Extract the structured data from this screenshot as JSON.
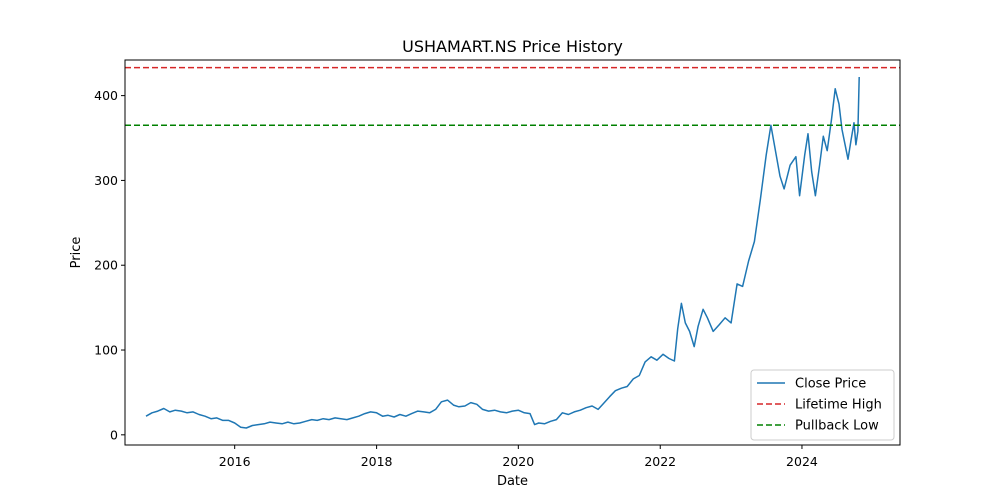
{
  "chart_data": {
    "type": "line",
    "title": "USHAMART.NS Price History",
    "xlabel": "Date",
    "ylabel": "Price",
    "x_ticks": [
      "2016",
      "2018",
      "2020",
      "2022",
      "2024"
    ],
    "y_ticks": [
      0,
      100,
      200,
      300,
      400
    ],
    "xlim": [
      "2014-06-15",
      "2025-05-20"
    ],
    "ylim": [
      -12,
      442
    ],
    "grid": false,
    "legend_position": "bottom-right",
    "series": [
      {
        "name": "Close Price",
        "color": "#1f77b4",
        "points": [
          [
            "2014-10-01",
            22
          ],
          [
            "2014-11-01",
            26
          ],
          [
            "2014-12-01",
            28
          ],
          [
            "2015-01-01",
            31
          ],
          [
            "2015-02-01",
            27
          ],
          [
            "2015-03-01",
            29
          ],
          [
            "2015-04-01",
            28
          ],
          [
            "2015-05-01",
            26
          ],
          [
            "2015-06-01",
            27
          ],
          [
            "2015-07-01",
            24
          ],
          [
            "2015-08-01",
            22
          ],
          [
            "2015-09-01",
            19
          ],
          [
            "2015-10-01",
            20
          ],
          [
            "2015-11-01",
            17
          ],
          [
            "2015-12-01",
            17
          ],
          [
            "2016-01-01",
            14
          ],
          [
            "2016-02-01",
            9
          ],
          [
            "2016-03-01",
            8
          ],
          [
            "2016-04-01",
            11
          ],
          [
            "2016-05-01",
            12
          ],
          [
            "2016-06-01",
            13
          ],
          [
            "2016-07-01",
            15
          ],
          [
            "2016-08-01",
            14
          ],
          [
            "2016-09-01",
            13
          ],
          [
            "2016-10-01",
            15
          ],
          [
            "2016-11-01",
            13
          ],
          [
            "2016-12-01",
            14
          ],
          [
            "2017-01-01",
            16
          ],
          [
            "2017-02-01",
            18
          ],
          [
            "2017-03-01",
            17
          ],
          [
            "2017-04-01",
            19
          ],
          [
            "2017-05-01",
            18
          ],
          [
            "2017-06-01",
            20
          ],
          [
            "2017-07-01",
            19
          ],
          [
            "2017-08-01",
            18
          ],
          [
            "2017-09-01",
            20
          ],
          [
            "2017-10-01",
            22
          ],
          [
            "2017-11-01",
            25
          ],
          [
            "2017-12-01",
            27
          ],
          [
            "2018-01-01",
            26
          ],
          [
            "2018-02-01",
            22
          ],
          [
            "2018-03-01",
            23
          ],
          [
            "2018-04-01",
            21
          ],
          [
            "2018-05-01",
            24
          ],
          [
            "2018-06-01",
            22
          ],
          [
            "2018-07-01",
            25
          ],
          [
            "2018-08-01",
            28
          ],
          [
            "2018-09-01",
            27
          ],
          [
            "2018-10-01",
            26
          ],
          [
            "2018-11-01",
            30
          ],
          [
            "2018-12-01",
            39
          ],
          [
            "2019-01-01",
            41
          ],
          [
            "2019-02-01",
            35
          ],
          [
            "2019-03-01",
            33
          ],
          [
            "2019-04-01",
            34
          ],
          [
            "2019-05-01",
            38
          ],
          [
            "2019-06-01",
            36
          ],
          [
            "2019-07-01",
            30
          ],
          [
            "2019-08-01",
            28
          ],
          [
            "2019-09-01",
            29
          ],
          [
            "2019-10-01",
            27
          ],
          [
            "2019-11-01",
            26
          ],
          [
            "2019-12-01",
            28
          ],
          [
            "2020-01-01",
            29
          ],
          [
            "2020-02-01",
            26
          ],
          [
            "2020-03-01",
            25
          ],
          [
            "2020-03-25",
            12
          ],
          [
            "2020-04-15",
            14
          ],
          [
            "2020-05-15",
            13
          ],
          [
            "2020-06-15",
            16
          ],
          [
            "2020-07-15",
            18
          ],
          [
            "2020-08-15",
            26
          ],
          [
            "2020-09-15",
            24
          ],
          [
            "2020-10-15",
            27
          ],
          [
            "2020-11-15",
            29
          ],
          [
            "2020-12-15",
            32
          ],
          [
            "2021-01-15",
            34
          ],
          [
            "2021-02-15",
            30
          ],
          [
            "2021-03-15",
            37
          ],
          [
            "2021-04-15",
            45
          ],
          [
            "2021-05-15",
            52
          ],
          [
            "2021-06-15",
            55
          ],
          [
            "2021-07-15",
            57
          ],
          [
            "2021-08-15",
            66
          ],
          [
            "2021-09-15",
            70
          ],
          [
            "2021-10-15",
            86
          ],
          [
            "2021-11-15",
            92
          ],
          [
            "2021-12-15",
            88
          ],
          [
            "2022-01-15",
            95
          ],
          [
            "2022-02-15",
            90
          ],
          [
            "2022-03-15",
            87
          ],
          [
            "2022-04-01",
            125
          ],
          [
            "2022-04-20",
            155
          ],
          [
            "2022-05-10",
            132
          ],
          [
            "2022-06-01",
            122
          ],
          [
            "2022-06-25",
            104
          ],
          [
            "2022-07-15",
            128
          ],
          [
            "2022-08-10",
            148
          ],
          [
            "2022-09-01",
            138
          ],
          [
            "2022-10-01",
            122
          ],
          [
            "2022-11-01",
            130
          ],
          [
            "2022-12-01",
            138
          ],
          [
            "2023-01-01",
            132
          ],
          [
            "2023-02-01",
            178
          ],
          [
            "2023-03-01",
            175
          ],
          [
            "2023-04-01",
            205
          ],
          [
            "2023-05-01",
            228
          ],
          [
            "2023-06-01",
            278
          ],
          [
            "2023-07-01",
            330
          ],
          [
            "2023-07-25",
            365
          ],
          [
            "2023-08-15",
            338
          ],
          [
            "2023-09-10",
            305
          ],
          [
            "2023-10-01",
            290
          ],
          [
            "2023-11-01",
            318
          ],
          [
            "2023-12-01",
            328
          ],
          [
            "2023-12-20",
            282
          ],
          [
            "2024-01-15",
            330
          ],
          [
            "2024-02-01",
            355
          ],
          [
            "2024-02-20",
            310
          ],
          [
            "2024-03-10",
            282
          ],
          [
            "2024-04-01",
            318
          ],
          [
            "2024-04-20",
            352
          ],
          [
            "2024-05-10",
            335
          ],
          [
            "2024-06-01",
            372
          ],
          [
            "2024-06-20",
            408
          ],
          [
            "2024-07-10",
            390
          ],
          [
            "2024-07-25",
            360
          ],
          [
            "2024-08-10",
            342
          ],
          [
            "2024-08-25",
            325
          ],
          [
            "2024-09-10",
            348
          ],
          [
            "2024-09-25",
            368
          ],
          [
            "2024-10-05",
            342
          ],
          [
            "2024-10-15",
            358
          ],
          [
            "2024-10-22",
            422
          ]
        ]
      },
      {
        "name": "Lifetime High",
        "color": "#d62728",
        "y": 433,
        "style": "dashed"
      },
      {
        "name": "Pullback Low",
        "color": "#008000",
        "y": 365,
        "style": "dashed"
      }
    ]
  }
}
